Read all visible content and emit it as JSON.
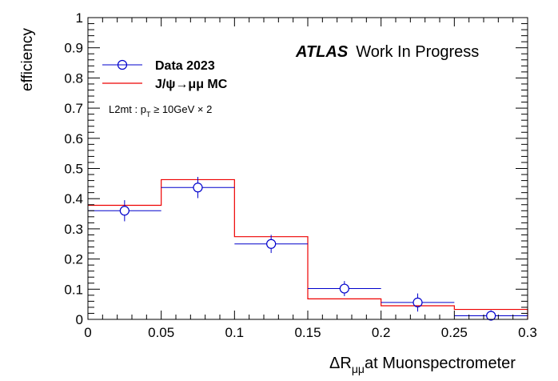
{
  "chart_data": {
    "type": "line",
    "header": {
      "experiment": "ATLAS",
      "status": "Work In Progress"
    },
    "xlabel": {
      "delta": "ΔR",
      "subscript": "μμ",
      "suffix": "at Muonspectrometer"
    },
    "ylabel": "efficiency",
    "xlim": [
      0,
      0.3
    ],
    "ylim": [
      0,
      1
    ],
    "x_ticks": [
      "0",
      "0.05",
      "0.1",
      "0.15",
      "0.2",
      "0.25",
      "0.3"
    ],
    "y_ticks": [
      "0",
      "0.1",
      "0.2",
      "0.3",
      "0.4",
      "0.5",
      "0.6",
      "0.7",
      "0.8",
      "0.9",
      "1"
    ],
    "legend_position": "top-left",
    "selection_label": {
      "prefix": "L2mt : p",
      "subscript": "T",
      "suffix": " ≥ 10GeV × 2"
    },
    "bin_edges": [
      0,
      0.05,
      0.1,
      0.15,
      0.2,
      0.25,
      0.3
    ],
    "series": [
      {
        "name": "Data 2023",
        "style": "markers",
        "color": "#0000cc",
        "x": [
          0.025,
          0.075,
          0.125,
          0.175,
          0.225,
          0.275
        ],
        "y": [
          0.36,
          0.437,
          0.25,
          0.102,
          0.056,
          0.012
        ],
        "y_err": [
          0.035,
          0.035,
          0.03,
          0.025,
          0.03,
          0.018
        ]
      },
      {
        "name": "J/ψ→μμ MC",
        "style": "histogram",
        "color": "#ee0000",
        "values": [
          0.378,
          0.463,
          0.274,
          0.068,
          0.045,
          0.033
        ]
      }
    ]
  }
}
